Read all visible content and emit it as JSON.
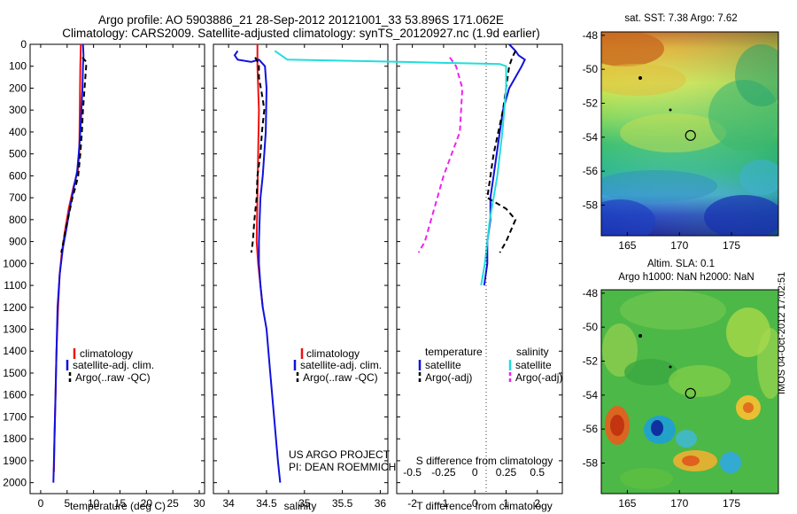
{
  "header": {
    "line1": "Argo profile: AO 5903886_21 28-Sep-2012 20121001_33 53.896S 171.062E",
    "line2": "Climatology: CARS2009. Satellite-adjusted climatology: synTS_20120927.nc (1.9d earlier)"
  },
  "colors": {
    "climatology": "#ee1111",
    "satellite": "#1111dd",
    "argo": "#000000",
    "sat_salinity": "#22dddd",
    "argo_salinity": "#ee22ee"
  },
  "chart_data": [
    {
      "type": "line",
      "name": "temperature-panel",
      "xlabel": "temperature (deg C)",
      "xlim": [
        -2,
        31
      ],
      "ylim": [
        2050,
        0
      ],
      "xticks": [
        "0",
        "5",
        "10",
        "15",
        "20",
        "25",
        "30"
      ],
      "yticks": [
        "0",
        "100",
        "200",
        "300",
        "400",
        "500",
        "600",
        "700",
        "800",
        "900",
        "1000",
        "1100",
        "1200",
        "1300",
        "1400",
        "1500",
        "1600",
        "1700",
        "1800",
        "1900",
        "2000"
      ],
      "legend": [
        "climatology",
        "satellite-adj. clim.",
        "Argo(..raw -QC)"
      ],
      "series": [
        {
          "name": "climatology",
          "style": "solid",
          "color": "climatology",
          "points": [
            [
              7.6,
              0
            ],
            [
              7.5,
              100
            ],
            [
              7.4,
              300
            ],
            [
              7.3,
              500
            ],
            [
              7.0,
              580
            ],
            [
              6.2,
              650
            ],
            [
              5.3,
              750
            ],
            [
              4.6,
              850
            ],
            [
              4.0,
              950
            ],
            [
              3.6,
              1050
            ],
            [
              3.3,
              1200
            ],
            [
              3.0,
              1400
            ],
            [
              2.8,
              1600
            ],
            [
              2.6,
              1800
            ],
            [
              2.5,
              1950
            ]
          ]
        },
        {
          "name": "satellite-adj. clim.",
          "style": "solid",
          "color": "satellite",
          "points": [
            [
              8.0,
              0
            ],
            [
              8.1,
              50
            ],
            [
              8.0,
              100
            ],
            [
              7.9,
              200
            ],
            [
              7.7,
              300
            ],
            [
              7.5,
              400
            ],
            [
              7.2,
              500
            ],
            [
              6.9,
              580
            ],
            [
              6.3,
              650
            ],
            [
              5.5,
              750
            ],
            [
              4.8,
              850
            ],
            [
              4.2,
              930
            ],
            [
              3.6,
              1050
            ],
            [
              3.2,
              1200
            ],
            [
              3.0,
              1400
            ],
            [
              2.8,
              1600
            ],
            [
              2.6,
              1800
            ],
            [
              2.4,
              2000
            ]
          ]
        },
        {
          "name": "Argo(..raw -QC)",
          "style": "dashed",
          "color": "argo",
          "points": [
            [
              7.9,
              60
            ],
            [
              8.6,
              80
            ],
            [
              8.6,
              100
            ],
            [
              8.3,
              200
            ],
            [
              8.0,
              300
            ],
            [
              7.8,
              400
            ],
            [
              7.5,
              500
            ],
            [
              7.1,
              600
            ],
            [
              6.6,
              650
            ],
            [
              6.0,
              700
            ],
            [
              5.3,
              780
            ],
            [
              4.6,
              860
            ],
            [
              4.3,
              900
            ],
            [
              3.9,
              950
            ]
          ]
        }
      ]
    },
    {
      "type": "line",
      "name": "salinity-panel",
      "xlabel": "salinity",
      "xlim": [
        33.8,
        36.1
      ],
      "ylim": [
        2050,
        0
      ],
      "xticks": [
        "34",
        "34.5",
        "35",
        "35.5",
        "36"
      ],
      "legend": [
        "climatology",
        "satellite-adj. clim.",
        "Argo(..raw -QC)"
      ],
      "annotation": [
        "US ARGO PROJECT",
        "PI: DEAN ROEMMICH"
      ],
      "series": [
        {
          "name": "climatology",
          "style": "solid",
          "color": "climatology",
          "points": [
            [
              34.38,
              0
            ],
            [
              34.38,
              100
            ],
            [
              34.4,
              300
            ],
            [
              34.39,
              500
            ],
            [
              34.38,
              700
            ],
            [
              34.37,
              900
            ],
            [
              34.39,
              1000
            ],
            [
              34.42,
              1100
            ],
            [
              34.45,
              1200
            ]
          ]
        },
        {
          "name": "satellite-adj. clim.",
          "style": "solid",
          "color": "satellite",
          "points": [
            [
              34.12,
              30
            ],
            [
              34.08,
              50
            ],
            [
              34.12,
              70
            ],
            [
              34.3,
              80
            ],
            [
              34.4,
              70
            ],
            [
              34.48,
              100
            ],
            [
              34.5,
              200
            ],
            [
              34.49,
              400
            ],
            [
              34.45,
              600
            ],
            [
              34.42,
              700
            ],
            [
              34.41,
              800
            ],
            [
              34.4,
              900
            ],
            [
              34.4,
              1000
            ],
            [
              34.42,
              1100
            ],
            [
              34.45,
              1200
            ],
            [
              34.5,
              1300
            ],
            [
              34.55,
              1500
            ],
            [
              34.6,
              1700
            ],
            [
              34.65,
              1900
            ],
            [
              34.68,
              2000
            ]
          ]
        },
        {
          "name": "Argo(..raw -QC)",
          "style": "dashed",
          "color": "argo",
          "points": [
            [
              34.35,
              60
            ],
            [
              34.4,
              90
            ],
            [
              34.4,
              150
            ],
            [
              34.45,
              250
            ],
            [
              34.47,
              300
            ],
            [
              34.44,
              400
            ],
            [
              34.42,
              500
            ],
            [
              34.38,
              600
            ],
            [
              34.37,
              700
            ],
            [
              34.34,
              800
            ],
            [
              34.32,
              900
            ],
            [
              34.3,
              950
            ]
          ]
        }
      ]
    },
    {
      "type": "line",
      "name": "difference-panel",
      "xlabel": "T difference from climatology",
      "xlabel2": "S difference from climatology",
      "xlim": [
        -2.5,
        2.8
      ],
      "ylim": [
        2050,
        0
      ],
      "xticks": [
        "-2",
        "-1",
        "0",
        "1",
        "2"
      ],
      "xticks_s": [
        "-0.5",
        "-0.25",
        "0",
        "0.25",
        "0.5"
      ],
      "legend_titles": [
        "temperature",
        "salinity"
      ],
      "legend": [
        "satellite",
        "Argo(-adj)",
        "satellite",
        "Argo(-adj)"
      ],
      "series": [
        {
          "name": "T satellite",
          "style": "solid",
          "color": "satellite",
          "points": [
            [
              1.1,
              0
            ],
            [
              1.3,
              30
            ],
            [
              1.4,
              50
            ],
            [
              1.6,
              70
            ],
            [
              1.5,
              100
            ],
            [
              1.3,
              150
            ],
            [
              1.1,
              200
            ],
            [
              0.9,
              300
            ],
            [
              0.8,
              400
            ],
            [
              0.7,
              500
            ],
            [
              0.6,
              600
            ],
            [
              0.5,
              700
            ],
            [
              0.5,
              800
            ],
            [
              0.4,
              900
            ],
            [
              0.4,
              1000
            ],
            [
              0.3,
              1100
            ]
          ]
        },
        {
          "name": "T Argo(-adj)",
          "style": "dashed",
          "color": "argo",
          "points": [
            [
              1.3,
              30
            ],
            [
              1.2,
              60
            ],
            [
              1.1,
              100
            ],
            [
              1.0,
              200
            ],
            [
              0.9,
              300
            ],
            [
              0.6,
              500
            ],
            [
              0.4,
              700
            ],
            [
              1.0,
              750
            ],
            [
              1.3,
              800
            ],
            [
              1.0,
              900
            ],
            [
              0.8,
              950
            ]
          ]
        },
        {
          "name": "S satellite",
          "style": "solid",
          "color": "sat_salinity",
          "points": [
            [
              -1.6,
              30
            ],
            [
              -1.5,
              70
            ],
            [
              -0.6,
              80
            ],
            [
              0.2,
              90
            ],
            [
              0.25,
              100
            ],
            [
              0.25,
              200
            ],
            [
              0.22,
              400
            ],
            [
              0.18,
              600
            ],
            [
              0.12,
              800
            ],
            [
              0.08,
              1000
            ],
            [
              0.05,
              1100
            ]
          ]
        },
        {
          "name": "S Argo(-adj)",
          "style": "dashed",
          "color": "argo_salinity",
          "points": [
            [
              -0.2,
              60
            ],
            [
              -0.15,
              100
            ],
            [
              -0.1,
              200
            ],
            [
              -0.12,
              400
            ],
            [
              -0.25,
              600
            ],
            [
              -0.3,
              700
            ],
            [
              -0.35,
              800
            ],
            [
              -0.4,
              900
            ],
            [
              -0.45,
              950
            ]
          ]
        }
      ]
    },
    {
      "type": "heatmap",
      "name": "sst-map",
      "title": "sat. SST: 7.38  Argo: 7.62",
      "xticks": [
        "165",
        "170",
        "175"
      ],
      "yticks": [
        "-48",
        "-50",
        "-52",
        "-54",
        "-56",
        "-58"
      ],
      "xlim": [
        162.5,
        179.5
      ],
      "ylim": [
        -59.8,
        -47.8
      ],
      "marker": {
        "lon": 171.062,
        "lat": -53.896
      }
    },
    {
      "type": "heatmap",
      "name": "sla-map",
      "title": "Altim. SLA: 0.1",
      "subtitle": "Argo h1000: NaN h2000: NaN",
      "xticks": [
        "165",
        "170",
        "175"
      ],
      "yticks": [
        "-48",
        "-50",
        "-52",
        "-54",
        "-56",
        "-58"
      ],
      "xlim": [
        162.5,
        179.5
      ],
      "ylim": [
        -59.8,
        -47.8
      ],
      "marker": {
        "lon": 171.062,
        "lat": -53.896
      }
    }
  ],
  "watermark": "IMOS 04-Oct-2012 17:02:51"
}
